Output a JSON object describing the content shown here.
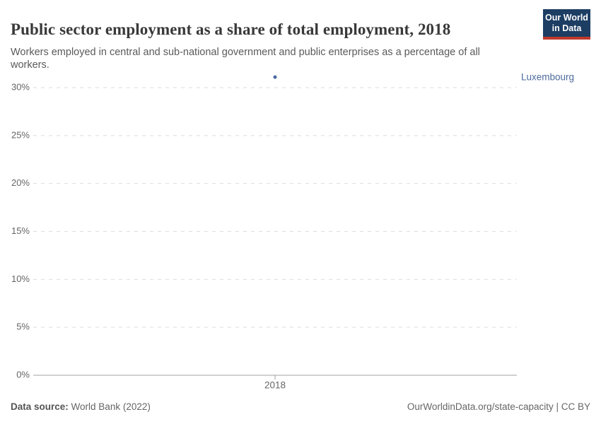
{
  "header": {
    "title": "Public sector employment as a share of total employment, 2018",
    "subtitle": "Workers employed in central and sub-national government and public enterprises as a percentage of all workers.",
    "logo": {
      "line1": "Our World",
      "line2": "in Data",
      "bg_color": "#1d3d63",
      "accent_color": "#c0392b"
    }
  },
  "chart_data": {
    "type": "scatter",
    "title": "Public sector employment as a share of total employment, 2018",
    "x": [
      2018
    ],
    "x_tick_labels": [
      "2018"
    ],
    "series": [
      {
        "name": "Luxembourg",
        "values": [
          31.1
        ],
        "color": "#4c6a9c"
      }
    ],
    "xlabel": "",
    "ylabel": "",
    "y_ticks": [
      0,
      5,
      10,
      15,
      20,
      25,
      30
    ],
    "y_tick_suffix": "%",
    "ylim": [
      0,
      32
    ],
    "grid": "horizontal-dashed",
    "legend_position": "right-of-point-label",
    "colors": {
      "gridline": "#dedede",
      "axis_line": "#a2a2a2",
      "tick_label": "#666666"
    }
  },
  "footer": {
    "source_label": "Data source:",
    "source_value": "World Bank (2022)",
    "attribution": "OurWorldinData.org/state-capacity | CC BY"
  }
}
